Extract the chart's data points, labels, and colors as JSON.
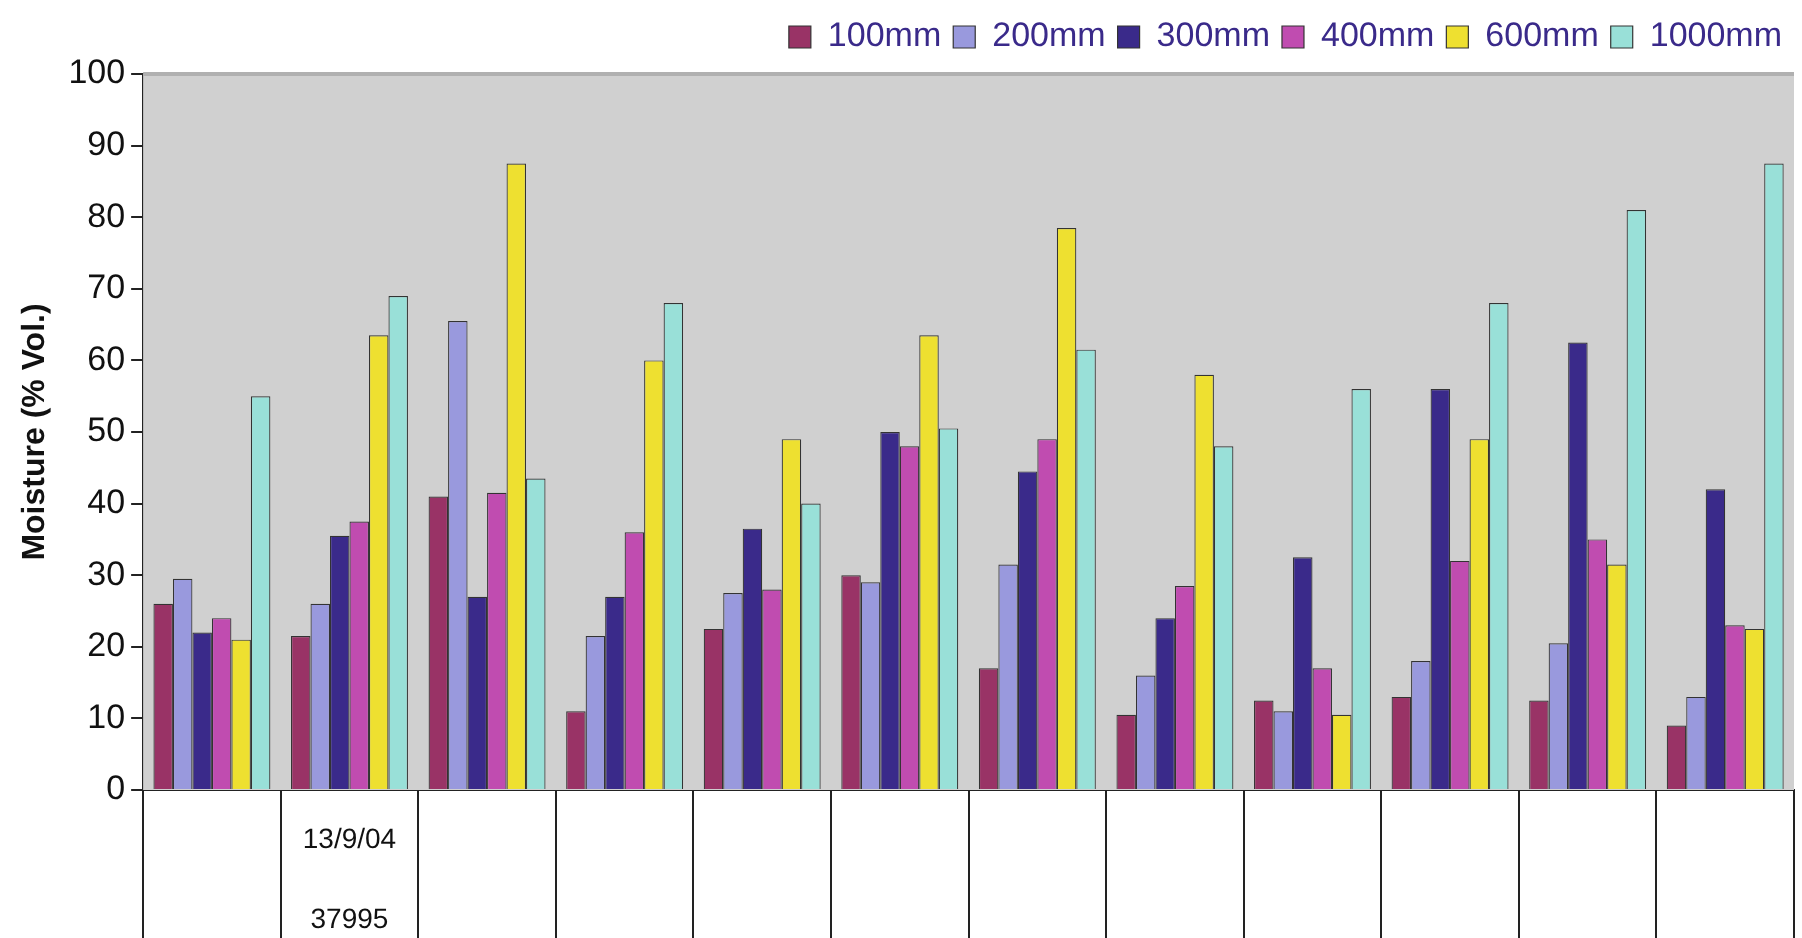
{
  "chart_data": {
    "type": "bar",
    "ylabel": "Moisture (% Vol.)",
    "categories": [
      null,
      "13/9/04\n37995",
      null,
      null,
      null,
      null,
      null,
      null,
      null,
      null,
      null,
      null
    ],
    "series": [
      {
        "name": "100mm",
        "color": "#993366",
        "values": [
          26,
          21.5,
          41,
          11,
          22.5,
          30,
          17,
          10.5,
          12.5,
          13,
          12.5,
          9
        ]
      },
      {
        "name": "200mm",
        "color": "#9999dd",
        "values": [
          29.5,
          26,
          65.5,
          21.5,
          27.5,
          29,
          31.5,
          16,
          11,
          18,
          20.5,
          13
        ]
      },
      {
        "name": "300mm",
        "color": "#3a2a8a",
        "values": [
          22,
          35.5,
          27,
          27,
          36.5,
          50,
          44.5,
          24,
          32.5,
          56,
          62.5,
          42
        ]
      },
      {
        "name": "400mm",
        "color": "#c04cb0",
        "values": [
          24,
          37.5,
          41.5,
          36,
          28,
          48,
          49,
          28.5,
          17,
          32,
          35,
          23
        ]
      },
      {
        "name": "600mm",
        "color": "#eee030",
        "values": [
          21,
          63.5,
          87.5,
          60,
          49,
          63.5,
          78.5,
          58,
          10.5,
          49,
          31.5,
          22.5
        ]
      },
      {
        "name": "1000mm",
        "color": "#99e0d8",
        "values": [
          55,
          69,
          43.5,
          68,
          40,
          50.5,
          61.5,
          48,
          56,
          68,
          81,
          87.5
        ]
      }
    ],
    "ylim": [
      0,
      100
    ],
    "yticks": [
      0,
      10,
      20,
      30,
      40,
      50,
      60,
      70,
      80,
      90,
      100
    ],
    "grid": false,
    "legend": "top right"
  }
}
